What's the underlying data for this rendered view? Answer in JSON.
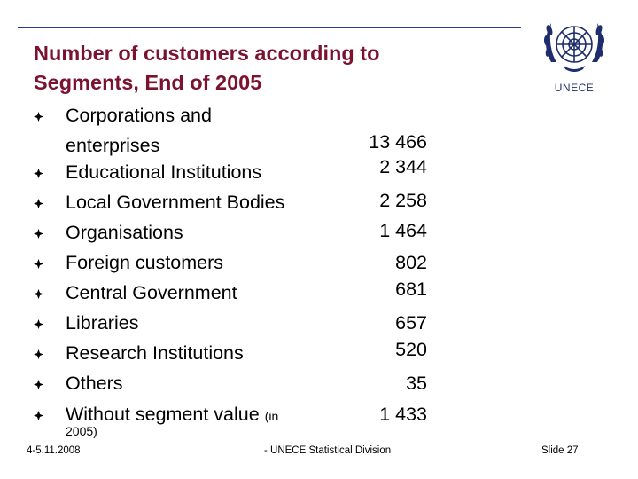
{
  "title": {
    "line1": "Number of customers according to",
    "line2": "Segments, End of 2005"
  },
  "logo": {
    "text": "UNECE",
    "icon": "un-emblem-icon"
  },
  "rows": [
    {
      "label_line1": "Corporations and",
      "label_line2": "enterprises",
      "value": "13 466"
    },
    {
      "label": "Educational Institutions",
      "value": "2 344"
    },
    {
      "label": "Local Government Bodies",
      "value": "2 258"
    },
    {
      "label": "Organisations",
      "value": "1 464"
    },
    {
      "label": "Foreign customers",
      "value": "802"
    },
    {
      "label": "Central Government",
      "value": "681"
    },
    {
      "label": "Libraries",
      "value": "657"
    },
    {
      "label": "Research Institutions",
      "value": "520"
    },
    {
      "label": "Others",
      "value": "35"
    },
    {
      "label": "Without segment value",
      "label_small": "(in",
      "label_small2": "2005)",
      "value": "1 433"
    }
  ],
  "footer": {
    "date": "4-5.11.2008",
    "org": "- UNECE Statistical Division",
    "slide": "Slide 27"
  },
  "colors": {
    "title": "#7a1230",
    "rule": "#2a3b8c",
    "emblem": "#1e2d6b"
  }
}
